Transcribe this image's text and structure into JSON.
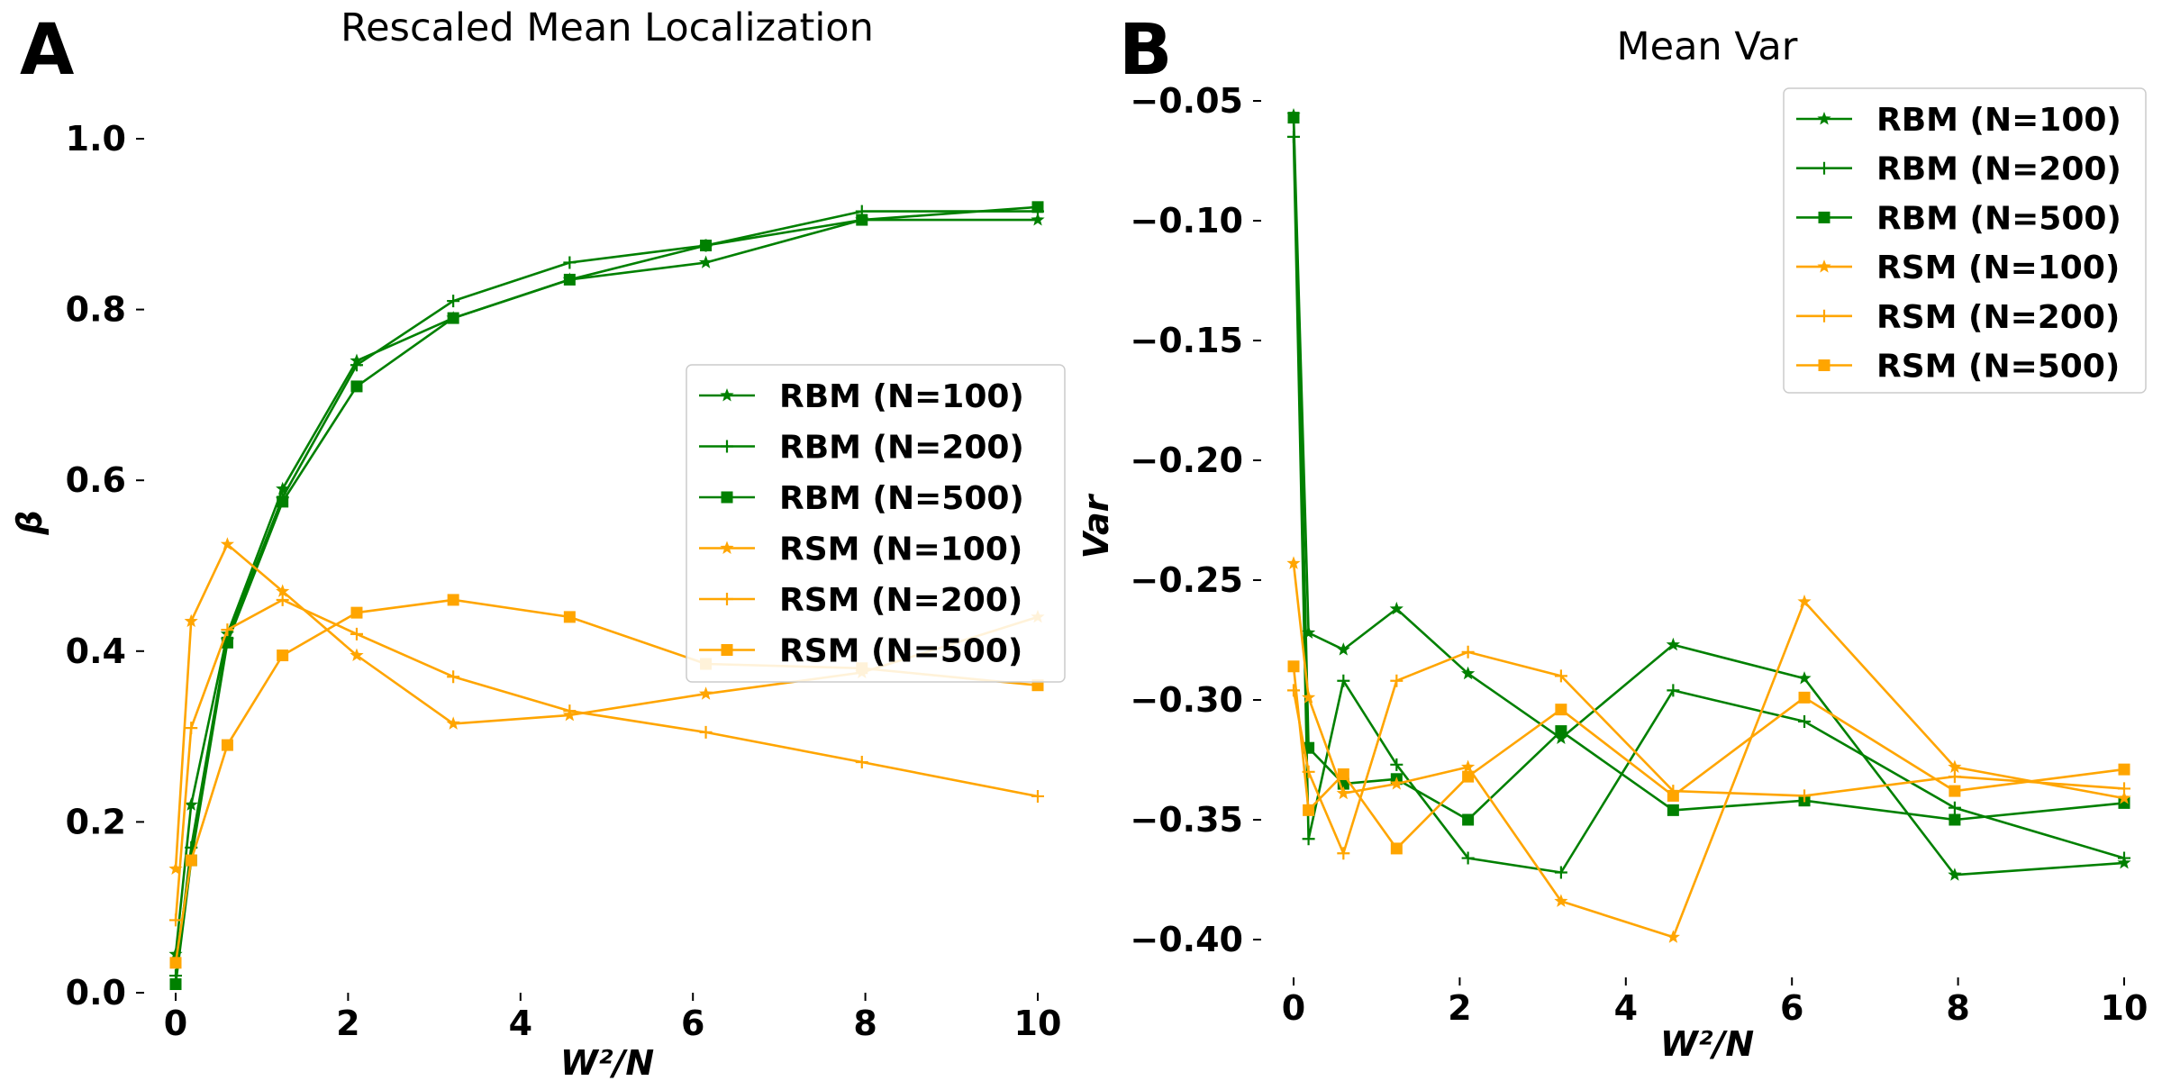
{
  "figure": {
    "panel_letters": [
      "A",
      "B"
    ]
  },
  "colors": {
    "RBM": "#008000",
    "RSM": "#FFA500"
  },
  "chart_data": [
    {
      "type": "line",
      "title": "Rescaled Mean Localization",
      "xlabel": "W²/N",
      "ylabel": "β",
      "xlim": [
        -0.35,
        10.3
      ],
      "ylim": [
        0.0,
        1.02
      ],
      "xticks": [
        0,
        2,
        4,
        6,
        8,
        10
      ],
      "xtick_labels": [
        "0",
        "2",
        "4",
        "6",
        "8",
        "10"
      ],
      "yticks": [
        0.0,
        0.2,
        0.4,
        0.6,
        0.8,
        1.0
      ],
      "ytick_labels": [
        "0.0",
        "0.2",
        "0.4",
        "0.6",
        "0.8",
        "1.0"
      ],
      "grid": false,
      "legend_position": "center-right",
      "x": [
        0.0,
        0.18,
        0.6,
        1.24,
        2.1,
        3.22,
        4.57,
        6.15,
        7.96,
        10.0
      ],
      "series": [
        {
          "name": "RBM (N=100)",
          "color": "#008000",
          "marker": "star",
          "values": [
            0.045,
            0.22,
            0.42,
            0.59,
            0.74,
            0.79,
            0.835,
            0.855,
            0.905,
            0.905
          ]
        },
        {
          "name": "RBM (N=200)",
          "color": "#008000",
          "marker": "plus",
          "values": [
            0.02,
            0.17,
            0.415,
            0.58,
            0.735,
            0.81,
            0.855,
            0.875,
            0.915,
            0.915
          ]
        },
        {
          "name": "RBM (N=500)",
          "color": "#008000",
          "marker": "square",
          "values": [
            0.01,
            0.155,
            0.41,
            0.575,
            0.71,
            0.79,
            0.835,
            0.875,
            0.905,
            0.92
          ]
        },
        {
          "name": "RSM (N=100)",
          "color": "#FFA500",
          "marker": "star",
          "values": [
            0.145,
            0.435,
            0.525,
            0.47,
            0.395,
            0.315,
            0.325,
            0.35,
            0.375,
            0.44
          ]
        },
        {
          "name": "RSM (N=200)",
          "color": "#FFA500",
          "marker": "plus",
          "values": [
            0.085,
            0.31,
            0.425,
            0.46,
            0.42,
            0.37,
            0.33,
            0.305,
            0.27,
            0.23
          ]
        },
        {
          "name": "RSM (N=500)",
          "color": "#FFA500",
          "marker": "square",
          "values": [
            0.035,
            0.155,
            0.29,
            0.395,
            0.445,
            0.46,
            0.44,
            0.385,
            0.38,
            0.36
          ]
        }
      ]
    },
    {
      "type": "line",
      "title": "Mean Var",
      "xlabel": "W²/N",
      "ylabel": "Var",
      "xlim": [
        -0.35,
        10.3
      ],
      "ylim": [
        -0.41,
        -0.045
      ],
      "xticks": [
        0,
        2,
        4,
        6,
        8,
        10
      ],
      "xtick_labels": [
        "0",
        "2",
        "4",
        "6",
        "8",
        "10"
      ],
      "yticks": [
        -0.05,
        -0.1,
        -0.15,
        -0.2,
        -0.25,
        -0.3,
        -0.35,
        -0.4
      ],
      "ytick_labels": [
        "−0.05",
        "−0.10",
        "−0.15",
        "−0.20",
        "−0.25",
        "−0.30",
        "−0.35",
        "−0.40"
      ],
      "grid": false,
      "legend_position": "upper-right",
      "x": [
        0.0,
        0.18,
        0.6,
        1.24,
        2.1,
        3.22,
        4.57,
        6.15,
        7.96,
        10.0
      ],
      "series": [
        {
          "name": "RBM (N=100)",
          "color": "#008000",
          "marker": "star",
          "values": [
            -0.056,
            -0.272,
            -0.279,
            -0.262,
            -0.289,
            -0.316,
            -0.277,
            -0.291,
            -0.373,
            -0.368
          ]
        },
        {
          "name": "RBM (N=200)",
          "color": "#008000",
          "marker": "plus",
          "values": [
            -0.065,
            -0.358,
            -0.292,
            -0.327,
            -0.366,
            -0.372,
            -0.296,
            -0.309,
            -0.345,
            -0.366
          ]
        },
        {
          "name": "RBM (N=500)",
          "color": "#008000",
          "marker": "square",
          "values": [
            -0.057,
            -0.32,
            -0.335,
            -0.333,
            -0.35,
            -0.313,
            -0.346,
            -0.342,
            -0.35,
            -0.343
          ]
        },
        {
          "name": "RSM (N=100)",
          "color": "#FFA500",
          "marker": "star",
          "values": [
            -0.243,
            -0.299,
            -0.339,
            -0.335,
            -0.328,
            -0.384,
            -0.399,
            -0.259,
            -0.328,
            -0.341
          ]
        },
        {
          "name": "RSM (N=200)",
          "color": "#FFA500",
          "marker": "plus",
          "values": [
            -0.296,
            -0.33,
            -0.364,
            -0.292,
            -0.28,
            -0.29,
            -0.338,
            -0.34,
            -0.332,
            -0.337
          ]
        },
        {
          "name": "RSM (N=500)",
          "color": "#FFA500",
          "marker": "square",
          "values": [
            -0.286,
            -0.346,
            -0.331,
            -0.362,
            -0.332,
            -0.304,
            -0.34,
            -0.299,
            -0.338,
            -0.329
          ]
        }
      ]
    }
  ]
}
